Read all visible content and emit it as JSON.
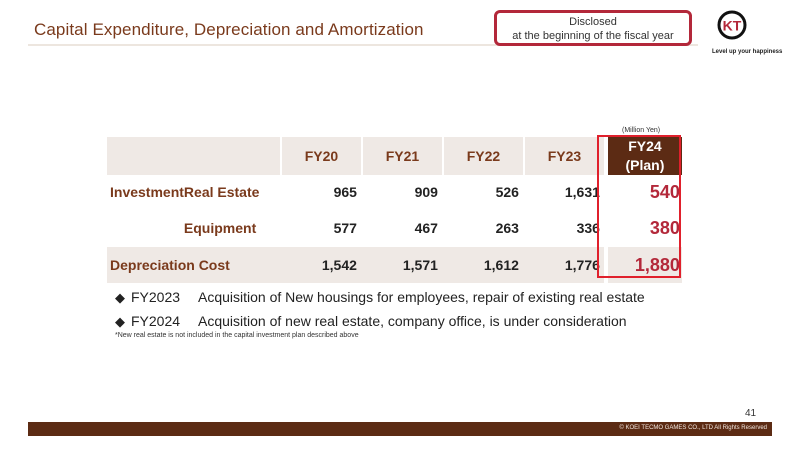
{
  "slide": {
    "title": "Capital Expenditure, Depreciation and Amortization",
    "disclosed_line1": "Disclosed",
    "disclosed_line2": "at the beginning of the fiscal year",
    "logo_text": "KT",
    "logo_tagline": "Level up your happiness",
    "page_number": "41",
    "copyright": "© KOEI TECMO GAMES CO., LTD All Rights Reserved"
  },
  "table": {
    "unit": "(Million Yen)",
    "columns": [
      "FY20",
      "FY21",
      "FY22",
      "FY23"
    ],
    "plan_column_line1": "FY24",
    "plan_column_line2": "(Plan)",
    "rows": [
      {
        "group": "Investment",
        "label": "Real Estate",
        "values": [
          "965",
          "909",
          "526",
          "1,631"
        ],
        "plan": "540"
      },
      {
        "group": "",
        "label": "Equipment",
        "values": [
          "577",
          "467",
          "263",
          "336"
        ],
        "plan": "380"
      },
      {
        "group": "Depreciation Cost",
        "label": "",
        "values": [
          "1,542",
          "1,571",
          "1,612",
          "1,776"
        ],
        "plan": "1,880"
      }
    ]
  },
  "notes": {
    "bullet_symbol": "◆",
    "bullets": [
      {
        "year": "FY2023",
        "text": "Acquisition of New housings for employees, repair of existing real estate"
      },
      {
        "year": "FY2024",
        "text": "Acquisition of new real estate, company office, is under consideration"
      }
    ],
    "footnote": "*New real estate is not included in the capital investment plan described above"
  },
  "colors": {
    "title_brown": "#7a3a1c",
    "dark_brown": "#5c2b14",
    "plan_red": "#b3283a",
    "highlight_red": "#e0202c",
    "row_shade": "#efe9e5"
  }
}
